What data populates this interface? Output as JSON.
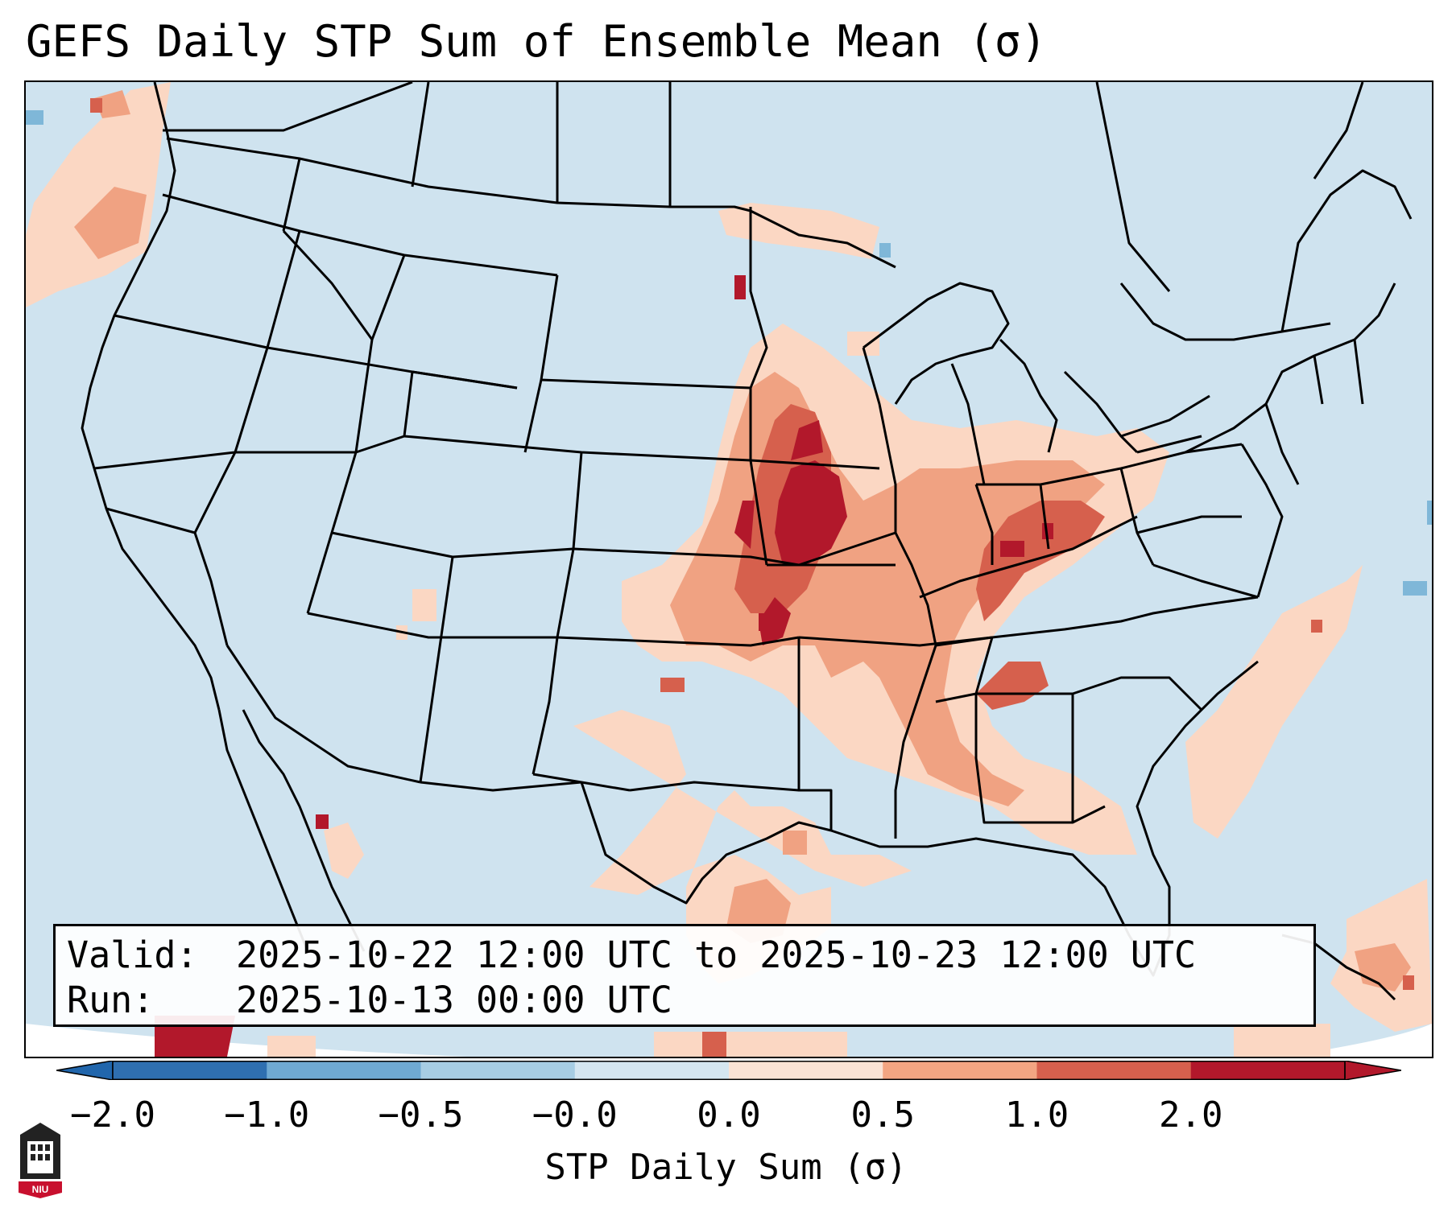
{
  "title": "GEFS Daily STP Sum of Ensemble Mean (σ)",
  "info": {
    "valid_label": "Valid:",
    "valid_value": "2025-10-22 12:00 UTC to 2025-10-23 12:00 UTC",
    "run_label": "Run:",
    "run_value": "2025-10-13 00:00 UTC"
  },
  "colorbar": {
    "label": "STP Daily Sum (σ)",
    "ticks": [
      "−2.0",
      "−1.0",
      "−0.5",
      "−0.0",
      "0.0",
      "0.5",
      "1.0",
      "2.0"
    ],
    "colors": [
      "#2f6fb0",
      "#6fa9d2",
      "#a7cde3",
      "#d5e6f0",
      "#fbe3d5",
      "#f3a582",
      "#d6604d",
      "#b2182b"
    ],
    "under_color": "#2166ac",
    "over_color": "#b2182b"
  },
  "logo": {
    "text": "NIU",
    "icon": "university-seal-icon"
  },
  "map": {
    "background_color": "#cfe3ef",
    "colors": {
      "light": "#fbd7c3",
      "medium": "#f0a282",
      "strong": "#d6604d",
      "max": "#b2182b",
      "blue_light": "#a9cde3",
      "blue_med": "#7fb7d8"
    }
  }
}
